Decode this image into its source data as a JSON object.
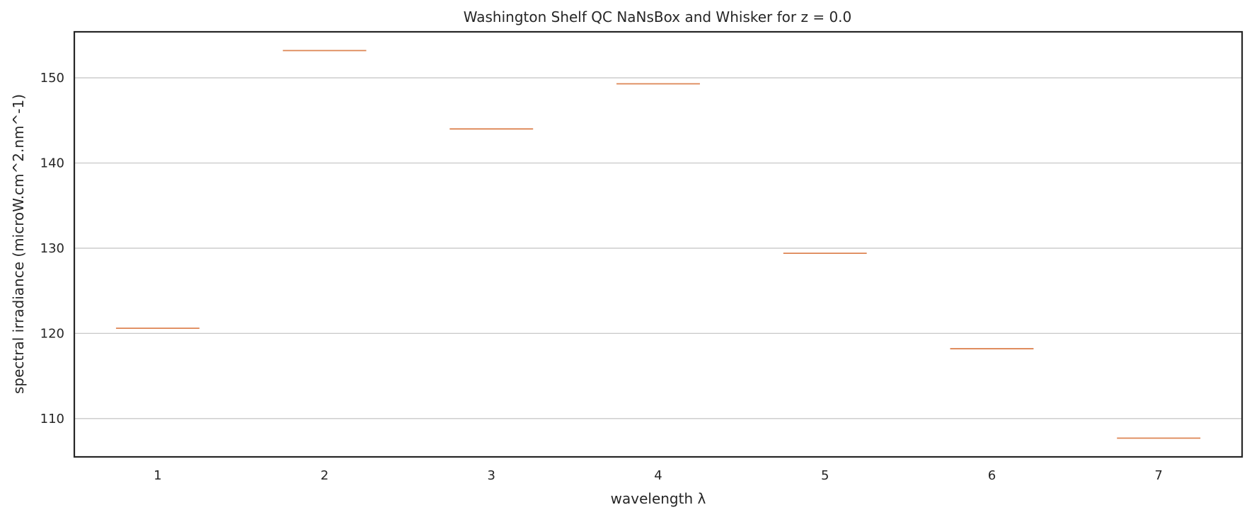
{
  "chart_data": {
    "type": "box",
    "title": "Washington Shelf QC NaNsBox and Whisker for z = 0.0",
    "xlabel": "wavelength λ",
    "ylabel": "spectral irradiance (microW.cm^2.nm^-1)",
    "categories": [
      "1",
      "2",
      "3",
      "4",
      "5",
      "6",
      "7"
    ],
    "values": [
      120.6,
      153.2,
      144.0,
      149.3,
      129.4,
      118.2,
      107.7
    ],
    "ylim": [
      105.5,
      155.4
    ],
    "yticks": [
      110,
      120,
      130,
      140,
      150
    ],
    "grid": "horizontal",
    "median_color": "#dd8452"
  }
}
